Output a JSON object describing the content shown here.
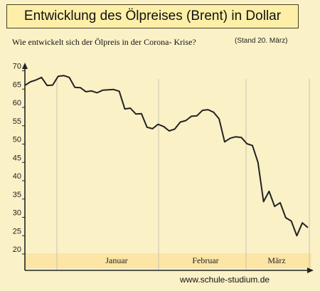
{
  "header": {
    "title": "Entwicklung des Ölpreises (Brent) in Dollar",
    "subtitle": "Wie entwickelt sich der Ölpreis in der Corona- Krise?",
    "stand": "(Stand 20. März)"
  },
  "footer": {
    "source": "www.schule-studium.de"
  },
  "colors": {
    "background": "#FBF1C7",
    "band": "#FCE5A5",
    "line": "#222222",
    "grid": "#c9c2b0"
  },
  "chart_data": {
    "type": "line",
    "title": "Entwicklung des Ölpreises (Brent) in Dollar",
    "subtitle": "Wie entwickelt sich der Ölpreis in der Corona- Krise?",
    "xlabel": "",
    "ylabel": "",
    "ylim": [
      20,
      70
    ],
    "yticks": [
      20,
      25,
      30,
      35,
      40,
      45,
      50,
      55,
      60,
      65,
      70
    ],
    "months": [
      "Januar",
      "Februar",
      "März"
    ],
    "grid": "vertical month separators",
    "series": [
      {
        "name": "",
        "values": [
          66.0,
          67.0,
          67.5,
          68.2,
          66.0,
          66.1,
          68.5,
          68.7,
          68.2,
          65.5,
          65.4,
          64.3,
          64.5,
          64.0,
          64.7,
          64.8,
          64.9,
          64.4,
          59.6,
          59.8,
          58.2,
          58.3,
          54.6,
          54.2,
          55.4,
          54.8,
          53.6,
          54.1,
          56.0,
          56.4,
          57.6,
          57.7,
          59.2,
          59.4,
          58.7,
          56.9,
          50.6,
          51.6,
          52.0,
          51.8,
          50.1,
          49.6,
          45.0,
          34.3,
          37.1,
          33.0,
          34.0,
          29.9,
          29.0,
          25.0,
          28.5,
          27.2
        ]
      }
    ]
  }
}
